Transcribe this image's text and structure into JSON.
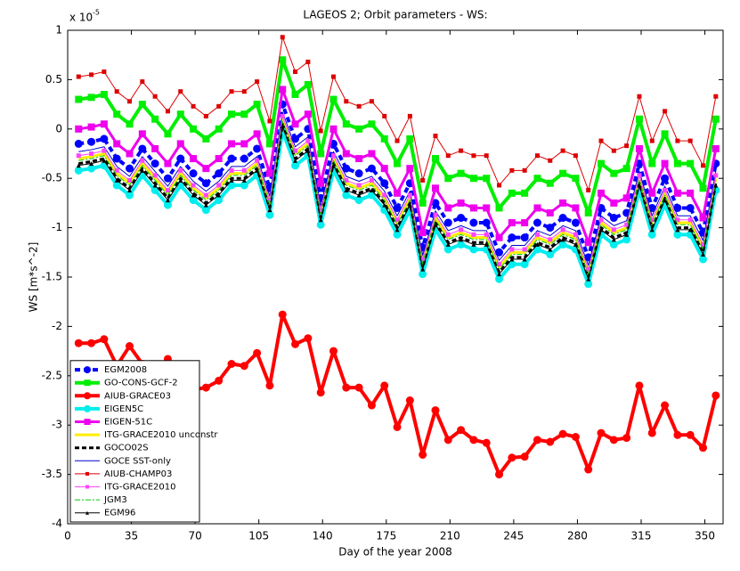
{
  "chart_data": {
    "type": "line",
    "title": "LAGEOS 2; Orbit parameters - WS:",
    "y_exponent_base": "x 10",
    "y_exponent": "-5",
    "xlabel": "Day of the year 2008",
    "ylabel": "WS [m*s^-2]",
    "xlim": [
      0,
      360
    ],
    "ylim": [
      -4,
      1
    ],
    "xticks": [
      0,
      35,
      70,
      105,
      140,
      175,
      210,
      245,
      280,
      315,
      350
    ],
    "yticks": [
      1,
      0.5,
      0,
      -0.5,
      -1,
      -1.5,
      -2,
      -2.5,
      -3,
      -3.5,
      -4
    ],
    "legend": "lower left",
    "x": [
      6,
      13,
      20,
      27,
      34,
      41,
      48,
      55,
      62,
      69,
      76,
      83,
      90,
      97,
      104,
      111,
      118,
      125,
      132,
      139,
      146,
      153,
      160,
      167,
      174,
      181,
      188,
      195,
      202,
      209,
      216,
      223,
      230,
      237,
      244,
      251,
      258,
      265,
      272,
      279,
      286,
      293,
      300,
      307,
      314,
      321,
      328,
      335,
      342,
      349,
      356
    ],
    "series": [
      {
        "name": "EGM2008",
        "color": "#0000ff",
        "line_width": 4,
        "dash": "6 4",
        "marker": "circle",
        "values": [
          -0.15,
          -0.13,
          -0.1,
          -0.3,
          -0.4,
          -0.2,
          -0.35,
          -0.5,
          -0.3,
          -0.45,
          -0.55,
          -0.45,
          -0.3,
          -0.3,
          -0.2,
          -0.6,
          0.25,
          -0.1,
          0.0,
          -0.7,
          -0.15,
          -0.4,
          -0.45,
          -0.4,
          -0.55,
          -0.8,
          -0.55,
          -1.2,
          -0.75,
          -0.95,
          -0.9,
          -0.95,
          -0.95,
          -1.25,
          -1.1,
          -1.1,
          -0.95,
          -1.0,
          -0.9,
          -0.95,
          -1.3,
          -0.8,
          -0.9,
          -0.85,
          -0.35,
          -0.8,
          -0.5,
          -0.8,
          -0.8,
          -1.05,
          -0.35
        ]
      },
      {
        "name": "GO-CONS-GCF-2",
        "color": "#00ee00",
        "line_width": 4,
        "dash": "none",
        "marker": "square",
        "values": [
          0.3,
          0.32,
          0.35,
          0.15,
          0.05,
          0.25,
          0.1,
          -0.05,
          0.15,
          0.0,
          -0.1,
          0.0,
          0.15,
          0.15,
          0.25,
          -0.15,
          0.7,
          0.35,
          0.45,
          -0.25,
          0.3,
          0.05,
          0.0,
          0.05,
          -0.1,
          -0.35,
          -0.1,
          -0.75,
          -0.3,
          -0.5,
          -0.45,
          -0.5,
          -0.5,
          -0.8,
          -0.65,
          -0.65,
          -0.5,
          -0.55,
          -0.45,
          -0.5,
          -0.85,
          -0.35,
          -0.45,
          -0.4,
          0.1,
          -0.35,
          -0.05,
          -0.35,
          -0.35,
          -0.6,
          0.1
        ]
      },
      {
        "name": "AIUB-GRACE03",
        "color": "#ff0000",
        "line_width": 4,
        "dash": "none",
        "marker": "circle",
        "values": [
          -2.17,
          -2.17,
          -2.13,
          -2.4,
          -2.2,
          -2.38,
          -2.55,
          -2.33,
          -2.6,
          -2.64,
          -2.62,
          -2.55,
          -2.38,
          -2.4,
          -2.27,
          -2.6,
          -1.88,
          -2.18,
          -2.12,
          -2.67,
          -2.25,
          -2.62,
          -2.62,
          -2.8,
          -2.6,
          -3.02,
          -2.75,
          -3.3,
          -2.85,
          -3.15,
          -3.05,
          -3.15,
          -3.18,
          -3.5,
          -3.33,
          -3.32,
          -3.15,
          -3.17,
          -3.09,
          -3.12,
          -3.45,
          -3.08,
          -3.15,
          -3.13,
          -2.6,
          -3.08,
          -2.8,
          -3.1,
          -3.1,
          -3.23,
          -2.7
        ]
      },
      {
        "name": "EIGEN5C",
        "color": "#00eeee",
        "line_width": 4,
        "dash": "none",
        "marker": "circle",
        "values": [
          -0.42,
          -0.4,
          -0.37,
          -0.57,
          -0.67,
          -0.47,
          -0.62,
          -0.77,
          -0.57,
          -0.72,
          -0.82,
          -0.72,
          -0.57,
          -0.57,
          -0.47,
          -0.87,
          -0.02,
          -0.37,
          -0.27,
          -0.97,
          -0.42,
          -0.67,
          -0.72,
          -0.67,
          -0.82,
          -1.07,
          -0.82,
          -1.47,
          -1.02,
          -1.22,
          -1.17,
          -1.22,
          -1.22,
          -1.52,
          -1.37,
          -1.37,
          -1.22,
          -1.27,
          -1.17,
          -1.22,
          -1.57,
          -1.07,
          -1.17,
          -1.12,
          -0.62,
          -1.07,
          -0.77,
          -1.07,
          -1.07,
          -1.32,
          -0.62
        ]
      },
      {
        "name": "EIGEN-51C",
        "color": "#ee00ee",
        "line_width": 3,
        "dash": "none",
        "marker": "square",
        "values": [
          0.0,
          0.02,
          0.05,
          -0.15,
          -0.25,
          -0.05,
          -0.2,
          -0.35,
          -0.15,
          -0.3,
          -0.4,
          -0.3,
          -0.15,
          -0.15,
          -0.05,
          -0.45,
          0.4,
          0.05,
          0.15,
          -0.55,
          0.0,
          -0.25,
          -0.3,
          -0.25,
          -0.4,
          -0.65,
          -0.4,
          -1.05,
          -0.6,
          -0.8,
          -0.75,
          -0.8,
          -0.8,
          -1.1,
          -0.95,
          -0.95,
          -0.8,
          -0.85,
          -0.75,
          -0.8,
          -1.15,
          -0.65,
          -0.75,
          -0.7,
          -0.2,
          -0.65,
          -0.35,
          -0.65,
          -0.65,
          -0.9,
          -0.2
        ]
      },
      {
        "name": "ITG-GRACE2010 unconstr",
        "color": "#ffee00",
        "line_width": 3,
        "dash": "none",
        "marker": "none",
        "values": [
          -0.3,
          -0.28,
          -0.25,
          -0.45,
          -0.55,
          -0.35,
          -0.5,
          -0.65,
          -0.45,
          -0.6,
          -0.7,
          -0.6,
          -0.45,
          -0.45,
          -0.35,
          -0.75,
          0.1,
          -0.25,
          -0.15,
          -0.85,
          -0.3,
          -0.55,
          -0.6,
          -0.55,
          -0.7,
          -0.95,
          -0.7,
          -1.35,
          -0.9,
          -1.1,
          -1.05,
          -1.1,
          -1.1,
          -1.4,
          -1.25,
          -1.25,
          -1.1,
          -1.15,
          -1.05,
          -1.1,
          -1.45,
          -0.95,
          -1.05,
          -1.0,
          -0.5,
          -0.95,
          -0.65,
          -0.95,
          -0.95,
          -1.2,
          -0.5
        ]
      },
      {
        "name": "GOCO02S",
        "color": "#000000",
        "line_width": 3,
        "dash": "5 3",
        "marker": "none",
        "values": [
          -0.35,
          -0.33,
          -0.3,
          -0.5,
          -0.6,
          -0.4,
          -0.55,
          -0.7,
          -0.5,
          -0.65,
          -0.75,
          -0.65,
          -0.5,
          -0.5,
          -0.4,
          -0.8,
          0.05,
          -0.3,
          -0.2,
          -0.9,
          -0.35,
          -0.6,
          -0.65,
          -0.6,
          -0.75,
          -1.0,
          -0.75,
          -1.4,
          -0.95,
          -1.15,
          -1.1,
          -1.15,
          -1.15,
          -1.45,
          -1.3,
          -1.3,
          -1.15,
          -1.2,
          -1.1,
          -1.15,
          -1.5,
          -1.0,
          -1.1,
          -1.05,
          -0.55,
          -1.0,
          -0.7,
          -1.0,
          -1.0,
          -1.25,
          -0.55
        ]
      },
      {
        "name": "GOCE SST-only",
        "color": "#0000cc",
        "line_width": 1,
        "dash": "none",
        "marker": "none",
        "values": [
          -0.23,
          -0.21,
          -0.18,
          -0.38,
          -0.48,
          -0.28,
          -0.43,
          -0.58,
          -0.38,
          -0.53,
          -0.63,
          -0.53,
          -0.38,
          -0.38,
          -0.28,
          -0.68,
          0.17,
          -0.18,
          -0.08,
          -0.78,
          -0.23,
          -0.48,
          -0.53,
          -0.48,
          -0.63,
          -0.88,
          -0.63,
          -1.28,
          -0.83,
          -1.03,
          -0.98,
          -1.03,
          -1.03,
          -1.33,
          -1.18,
          -1.18,
          -1.03,
          -1.08,
          -0.98,
          -1.03,
          -1.38,
          -0.88,
          -0.98,
          -0.93,
          -0.43,
          -0.88,
          -0.58,
          -0.88,
          -0.88,
          -1.13,
          -0.43
        ]
      },
      {
        "name": "AIUB-CHAMP03",
        "color": "#dd0000",
        "line_width": 1,
        "dash": "none",
        "marker": "square",
        "values": [
          0.53,
          0.55,
          0.58,
          0.38,
          0.28,
          0.48,
          0.33,
          0.18,
          0.38,
          0.23,
          0.13,
          0.23,
          0.38,
          0.38,
          0.48,
          0.08,
          0.93,
          0.58,
          0.68,
          -0.02,
          0.53,
          0.28,
          0.23,
          0.28,
          0.13,
          -0.12,
          0.13,
          -0.52,
          -0.07,
          -0.27,
          -0.22,
          -0.27,
          -0.27,
          -0.57,
          -0.42,
          -0.42,
          -0.27,
          -0.32,
          -0.22,
          -0.27,
          -0.62,
          -0.12,
          -0.22,
          -0.17,
          0.33,
          -0.12,
          0.18,
          -0.12,
          -0.12,
          -0.37,
          0.33
        ]
      },
      {
        "name": "ITG-GRACE2010",
        "color": "#ff44ff",
        "line_width": 1,
        "dash": "none",
        "marker": "square",
        "values": [
          -0.27,
          -0.25,
          -0.22,
          -0.42,
          -0.52,
          -0.32,
          -0.47,
          -0.62,
          -0.42,
          -0.57,
          -0.67,
          -0.57,
          -0.42,
          -0.42,
          -0.32,
          -0.72,
          0.13,
          -0.22,
          -0.12,
          -0.82,
          -0.27,
          -0.52,
          -0.57,
          -0.52,
          -0.67,
          -0.92,
          -0.67,
          -1.32,
          -0.87,
          -1.07,
          -1.02,
          -1.07,
          -1.07,
          -1.37,
          -1.22,
          -1.22,
          -1.07,
          -1.12,
          -1.02,
          -1.07,
          -1.42,
          -0.92,
          -1.02,
          -0.97,
          -0.47,
          -0.92,
          -0.62,
          -0.92,
          -0.92,
          -1.17,
          -0.47
        ]
      },
      {
        "name": "JGM3",
        "color": "#00cc00",
        "line_width": 1,
        "dash": "6 2 2 2",
        "marker": "none",
        "values": [
          -0.32,
          -0.3,
          -0.27,
          -0.47,
          -0.57,
          -0.37,
          -0.52,
          -0.67,
          -0.47,
          -0.62,
          -0.72,
          -0.62,
          -0.47,
          -0.47,
          -0.37,
          -0.77,
          0.08,
          -0.27,
          -0.17,
          -0.87,
          -0.32,
          -0.57,
          -0.62,
          -0.57,
          -0.72,
          -0.97,
          -0.72,
          -1.37,
          -0.92,
          -1.12,
          -1.07,
          -1.12,
          -1.12,
          -1.42,
          -1.27,
          -1.27,
          -1.12,
          -1.17,
          -1.07,
          -1.12,
          -1.47,
          -0.97,
          -1.07,
          -1.02,
          -0.52,
          -0.97,
          -0.67,
          -0.97,
          -0.97,
          -1.22,
          -0.52
        ]
      },
      {
        "name": "EGM96",
        "color": "#000000",
        "line_width": 1,
        "dash": "none",
        "marker": "triangle",
        "values": [
          -0.37,
          -0.35,
          -0.32,
          -0.52,
          -0.62,
          -0.42,
          -0.57,
          -0.72,
          -0.52,
          -0.67,
          -0.77,
          -0.67,
          -0.52,
          -0.52,
          -0.42,
          -0.82,
          0.03,
          -0.32,
          -0.22,
          -0.92,
          -0.37,
          -0.62,
          -0.67,
          -0.62,
          -0.77,
          -1.02,
          -0.77,
          -1.42,
          -0.97,
          -1.17,
          -1.12,
          -1.17,
          -1.17,
          -1.47,
          -1.32,
          -1.32,
          -1.17,
          -1.22,
          -1.12,
          -1.17,
          -1.52,
          -1.02,
          -1.12,
          -1.07,
          -0.57,
          -1.02,
          -0.72,
          -1.02,
          -1.02,
          -1.27,
          -0.57
        ]
      }
    ]
  }
}
